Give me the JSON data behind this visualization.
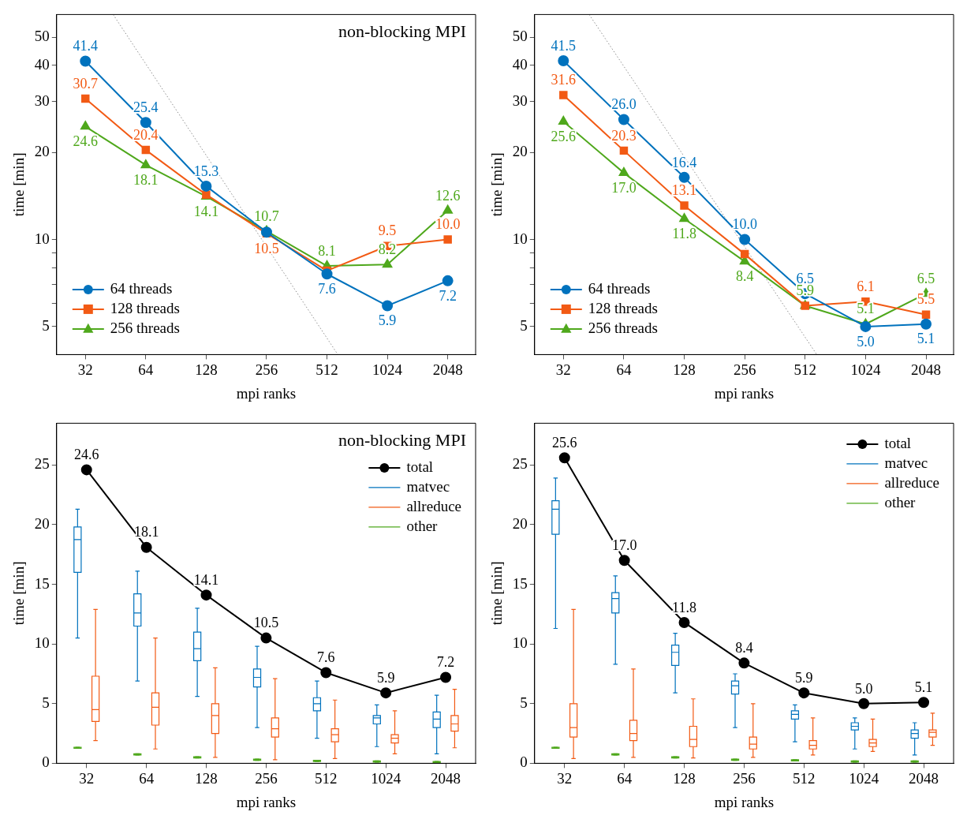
{
  "chart_data": [
    {
      "type": "line",
      "xlabel": "mpi ranks",
      "ylabel": "time [min]",
      "annotations": [
        "non-blocking MPI"
      ],
      "log": "xy",
      "x": [
        32,
        64,
        128,
        256,
        512,
        1024,
        2048
      ],
      "xlim": [
        23,
        2820
      ],
      "xticks": [
        32,
        64,
        128,
        256,
        512,
        1024,
        2048
      ],
      "ylim": [
        4,
        60
      ],
      "yticks": [
        5,
        {
          "value": 6,
          "label": null
        },
        {
          "value": 7,
          "label": null
        },
        {
          "value": 8,
          "label": null
        },
        {
          "value": 9,
          "label": null
        },
        10,
        20,
        30,
        40,
        50
      ],
      "legend": "bottom left",
      "series": [
        {
          "name": "64 threads",
          "color": "#0072bd",
          "marker": "circle",
          "values": [
            41.4,
            25.4,
            15.3,
            10.6,
            7.6,
            5.9,
            7.2
          ],
          "value_labels": [
            "41.4",
            "25.4",
            "15.3",
            null,
            "7.6",
            "5.9",
            "7.2"
          ]
        },
        {
          "name": "128 threads",
          "color": "#f25a14",
          "marker": "square",
          "values": [
            30.7,
            20.4,
            14.3,
            10.5,
            7.8,
            9.5,
            10.0
          ],
          "value_labels": [
            "30.7",
            "20.4",
            null,
            "10.5",
            null,
            "9.5",
            "10.0"
          ]
        },
        {
          "name": "256 threads",
          "color": "#4fa81c",
          "marker": "triangle",
          "values": [
            24.6,
            18.1,
            14.1,
            10.7,
            8.1,
            8.2,
            12.6
          ],
          "value_labels": [
            "24.6",
            "18.1",
            "14.1",
            "10.7",
            "8.1",
            "8.2",
            "12.6"
          ]
        },
        {
          "type": "line",
          "x": [
            44,
            580
          ],
          "values": [
            60,
            4
          ],
          "color": "#8c8c8c",
          "line_style": "dotted",
          "marker": "none"
        }
      ]
    },
    {
      "type": "line",
      "xlabel": "mpi ranks",
      "ylabel": "time [min]",
      "log": "xy",
      "x": [
        32,
        64,
        128,
        256,
        512,
        1024,
        2048
      ],
      "xlim": [
        23,
        2810
      ],
      "xticks": [
        32,
        64,
        128,
        256,
        512,
        1024,
        2048
      ],
      "ylim": [
        4,
        60
      ],
      "yticks": [
        5,
        {
          "value": 6,
          "label": null
        },
        {
          "value": 7,
          "label": null
        },
        {
          "value": 8,
          "label": null
        },
        {
          "value": 9,
          "label": null
        },
        10,
        20,
        30,
        40,
        50
      ],
      "legend": "bottom left",
      "series": [
        {
          "name": "64 threads",
          "color": "#0072bd",
          "marker": "circle",
          "values": [
            41.5,
            26.0,
            16.4,
            10.0,
            6.5,
            5.0,
            5.1
          ],
          "value_labels": [
            "41.5",
            "26.0",
            "16.4",
            "10.0",
            "6.5",
            "5.0",
            "5.1"
          ]
        },
        {
          "name": "128 threads",
          "color": "#f25a14",
          "marker": "square",
          "values": [
            31.6,
            20.3,
            13.1,
            8.9,
            5.9,
            6.1,
            5.5
          ],
          "value_labels": [
            "31.6",
            "20.3",
            "13.1",
            null,
            null,
            "6.1",
            "5.5"
          ]
        },
        {
          "name": "256 threads",
          "color": "#4fa81c",
          "marker": "triangle",
          "values": [
            25.6,
            17.0,
            11.8,
            8.4,
            5.9,
            5.1,
            6.5
          ],
          "value_labels": [
            "25.6",
            "17.0",
            "11.8",
            "8.4",
            "5.9",
            "5.1",
            "6.5"
          ]
        },
        {
          "type": "line",
          "x": [
            43,
            585
          ],
          "values": [
            60,
            4
          ],
          "color": "#8c8c8c",
          "line_style": "dotted",
          "marker": "none"
        }
      ]
    },
    {
      "type": "box",
      "xlabel": "mpi ranks",
      "ylabel": "time [min]",
      "annotations": [
        "non-blocking MPI"
      ],
      "categories": [
        "32",
        "64",
        "128",
        "256",
        "512",
        "1024",
        "2048"
      ],
      "ylim": [
        0,
        28.5
      ],
      "yticks": [
        0,
        5,
        10,
        15,
        20,
        25
      ],
      "legend": "top right",
      "series": [
        {
          "name": "total",
          "type": "line",
          "color": "#000000",
          "marker": "circle",
          "values": [
            24.6,
            18.1,
            14.1,
            10.5,
            7.6,
            5.9,
            7.2
          ],
          "value_labels": [
            "24.6",
            "18.1",
            "14.1",
            "10.5",
            "7.6",
            "5.9",
            "7.2"
          ]
        },
        {
          "name": "matvec",
          "type": "box",
          "color": "#0072bd",
          "boxes": [
            {
              "low": 10.5,
              "q1": 16.0,
              "median": 18.75,
              "q3": 19.8,
              "high": 21.3
            },
            {
              "low": 6.9,
              "q1": 11.5,
              "median": 12.6,
              "q3": 14.2,
              "high": 16.1
            },
            {
              "low": 5.6,
              "q1": 8.6,
              "median": 9.6,
              "q3": 11.0,
              "high": 13.0
            },
            {
              "low": 3.0,
              "q1": 6.4,
              "median": 7.2,
              "q3": 7.9,
              "high": 9.8
            },
            {
              "low": 2.1,
              "q1": 4.4,
              "median": 5.0,
              "q3": 5.5,
              "high": 6.9
            },
            {
              "low": 1.4,
              "q1": 3.3,
              "median": 3.8,
              "q3": 4.0,
              "high": 4.9
            },
            {
              "low": 0.8,
              "q1": 3.0,
              "median": 3.7,
              "q3": 4.3,
              "high": 5.7
            }
          ]
        },
        {
          "name": "allreduce",
          "type": "box",
          "color": "#f25a14",
          "boxes": [
            {
              "low": 1.9,
              "q1": 3.5,
              "median": 4.5,
              "q3": 7.3,
              "high": 12.9
            },
            {
              "low": 1.2,
              "q1": 3.2,
              "median": 4.7,
              "q3": 5.9,
              "high": 10.5
            },
            {
              "low": 0.5,
              "q1": 2.5,
              "median": 4.0,
              "q3": 5.0,
              "high": 8.0
            },
            {
              "low": 0.3,
              "q1": 2.2,
              "median": 2.9,
              "q3": 3.8,
              "high": 7.1
            },
            {
              "low": 0.4,
              "q1": 1.8,
              "median": 2.4,
              "q3": 2.9,
              "high": 5.3
            },
            {
              "low": 0.8,
              "q1": 1.7,
              "median": 2.1,
              "q3": 2.4,
              "high": 4.4
            },
            {
              "low": 1.3,
              "q1": 2.7,
              "median": 3.3,
              "q3": 4.0,
              "high": 6.2
            }
          ]
        },
        {
          "name": "other",
          "type": "box",
          "color": "#4fa81c",
          "boxes": [
            {
              "low": 1.25,
              "q1": 1.25,
              "median": 1.3,
              "q3": 1.35,
              "high": 1.35
            },
            {
              "low": 0.7,
              "q1": 0.7,
              "median": 0.75,
              "q3": 0.8,
              "high": 0.8
            },
            {
              "low": 0.45,
              "q1": 0.45,
              "median": 0.5,
              "q3": 0.55,
              "high": 0.55
            },
            {
              "low": 0.25,
              "q1": 0.25,
              "median": 0.3,
              "q3": 0.35,
              "high": 0.35
            },
            {
              "low": 0.15,
              "q1": 0.15,
              "median": 0.2,
              "q3": 0.25,
              "high": 0.25
            },
            {
              "low": 0.1,
              "q1": 0.1,
              "median": 0.15,
              "q3": 0.2,
              "high": 0.2
            },
            {
              "low": 0.05,
              "q1": 0.05,
              "median": 0.1,
              "q3": 0.15,
              "high": 0.15
            }
          ]
        }
      ]
    },
    {
      "type": "box",
      "xlabel": "mpi ranks",
      "ylabel": "time [min]",
      "categories": [
        "32",
        "64",
        "128",
        "256",
        "512",
        "1024",
        "2048"
      ],
      "ylim": [
        0,
        28.5
      ],
      "yticks": [
        0,
        5,
        10,
        15,
        20,
        25
      ],
      "legend": "top right",
      "series": [
        {
          "name": "total",
          "type": "line",
          "color": "#000000",
          "marker": "circle",
          "values": [
            25.6,
            17.0,
            11.8,
            8.4,
            5.9,
            5.0,
            5.1
          ],
          "value_labels": [
            "25.6",
            "17.0",
            "11.8",
            "8.4",
            "5.9",
            "5.0",
            "5.1"
          ]
        },
        {
          "name": "matvec",
          "type": "box",
          "color": "#0072bd",
          "boxes": [
            {
              "low": 11.3,
              "q1": 19.2,
              "median": 21.3,
              "q3": 22.0,
              "high": 23.9
            },
            {
              "low": 8.3,
              "q1": 12.6,
              "median": 13.8,
              "q3": 14.3,
              "high": 15.7
            },
            {
              "low": 5.9,
              "q1": 8.2,
              "median": 9.3,
              "q3": 9.9,
              "high": 10.9
            },
            {
              "low": 3.0,
              "q1": 5.8,
              "median": 6.5,
              "q3": 6.9,
              "high": 7.5
            },
            {
              "low": 1.8,
              "q1": 3.7,
              "median": 4.1,
              "q3": 4.4,
              "high": 4.9
            },
            {
              "low": 1.2,
              "q1": 2.8,
              "median": 3.1,
              "q3": 3.4,
              "high": 3.8
            },
            {
              "low": 0.7,
              "q1": 2.1,
              "median": 2.5,
              "q3": 2.8,
              "high": 3.4
            }
          ]
        },
        {
          "name": "allreduce",
          "type": "box",
          "color": "#f25a14",
          "boxes": [
            {
              "low": 0.4,
              "q1": 2.2,
              "median": 3.0,
              "q3": 5.0,
              "high": 12.9
            },
            {
              "low": 0.5,
              "q1": 1.9,
              "median": 2.5,
              "q3": 3.6,
              "high": 7.9
            },
            {
              "low": 0.45,
              "q1": 1.4,
              "median": 2.0,
              "q3": 3.1,
              "high": 5.4
            },
            {
              "low": 0.5,
              "q1": 1.2,
              "median": 1.6,
              "q3": 2.2,
              "high": 5.0
            },
            {
              "low": 0.7,
              "q1": 1.2,
              "median": 1.5,
              "q3": 1.9,
              "high": 3.8
            },
            {
              "low": 1.0,
              "q1": 1.4,
              "median": 1.7,
              "q3": 2.0,
              "high": 3.7
            },
            {
              "low": 1.5,
              "q1": 2.2,
              "median": 2.6,
              "q3": 2.8,
              "high": 4.2
            }
          ]
        },
        {
          "name": "other",
          "type": "box",
          "color": "#4fa81c",
          "boxes": [
            {
              "low": 1.25,
              "q1": 1.25,
              "median": 1.3,
              "q3": 1.35,
              "high": 1.35
            },
            {
              "low": 0.7,
              "q1": 0.7,
              "median": 0.75,
              "q3": 0.8,
              "high": 0.8
            },
            {
              "low": 0.45,
              "q1": 0.45,
              "median": 0.5,
              "q3": 0.55,
              "high": 0.55
            },
            {
              "low": 0.25,
              "q1": 0.25,
              "median": 0.3,
              "q3": 0.35,
              "high": 0.35
            },
            {
              "low": 0.2,
              "q1": 0.2,
              "median": 0.25,
              "q3": 0.3,
              "high": 0.3
            },
            {
              "low": 0.1,
              "q1": 0.1,
              "median": 0.15,
              "q3": 0.2,
              "high": 0.2
            },
            {
              "low": 0.1,
              "q1": 0.1,
              "median": 0.15,
              "q3": 0.2,
              "high": 0.2
            }
          ]
        }
      ]
    }
  ]
}
